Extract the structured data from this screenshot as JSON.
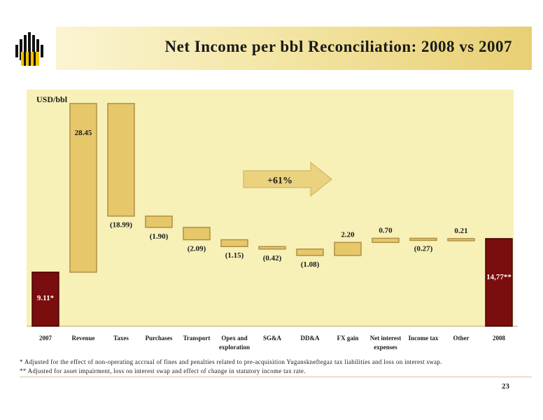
{
  "header": {
    "title": "Net Income per bbl Reconciliation: 2008 vs 2007"
  },
  "chart_data": {
    "type": "waterfall",
    "ylabel": "USD/bbl",
    "categories": [
      "2007",
      "Revenue",
      "Taxes",
      "Purchases",
      "Transport",
      "Opex and exploration",
      "SG&A",
      "DD&A",
      "FX gain",
      "Net interest expenses",
      "Income tax",
      "Other",
      "2008"
    ],
    "values": [
      9.11,
      28.45,
      -18.99,
      -1.9,
      -2.09,
      -1.15,
      -0.42,
      -1.08,
      2.2,
      0.7,
      -0.27,
      0.21,
      14.77
    ],
    "kinds": [
      "total",
      "delta",
      "delta",
      "delta",
      "delta",
      "delta",
      "delta",
      "delta",
      "delta",
      "delta",
      "delta",
      "delta",
      "total"
    ],
    "value_labels": [
      "9.11*",
      "28.45",
      "(18.99)",
      "(1.90)",
      "(2.09)",
      "(1.15)",
      "(0.42)",
      "(1.08)",
      "2.20",
      "0.70",
      "(0.27)",
      "0.21",
      "14,77**"
    ],
    "annotation": "+61%"
  },
  "colors": {
    "total_bar": "#7a0d0d",
    "delta_bar": "#e6c76a",
    "delta_border": "#b08f45",
    "panel": "#f7f0b7",
    "arrow": "#ead27f"
  },
  "footnotes": [
    "* Adjusted for the effect of non-operating accrual of fines and penalties related to pre-acquisition Yuganskneftegaz tax liabilities and loss on interest swap.",
    "** Adjusted for asset impairment, loss on interest swap and effect of change in statutory income tax rate."
  ],
  "page_number": "23"
}
